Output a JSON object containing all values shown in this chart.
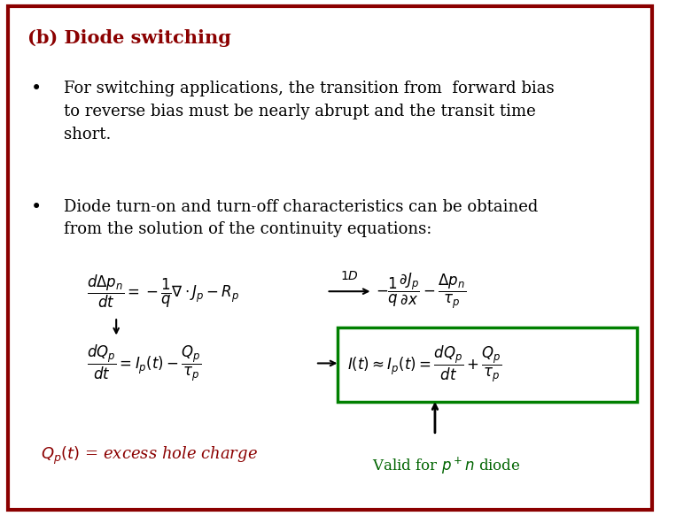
{
  "title": "(b) Diode switching",
  "title_color": "#8B0000",
  "background_color": "#FFFFFF",
  "border_color": "#8B0000",
  "bullet1_line1": "For switching applications, the transition from  forward bias",
  "bullet1_line2": "to reverse bias must be nearly abrupt and the transit time",
  "bullet1_line3": "short.",
  "bullet2_line1": "Diode turn-on and turn-off characteristics can be obtained",
  "bullet2_line2": "from the solution of the continuity equations:",
  "label_red_color": "#8B0000",
  "label_green_color": "#006400",
  "box_color": "#008000",
  "text_color": "#000000",
  "font_size": 13
}
